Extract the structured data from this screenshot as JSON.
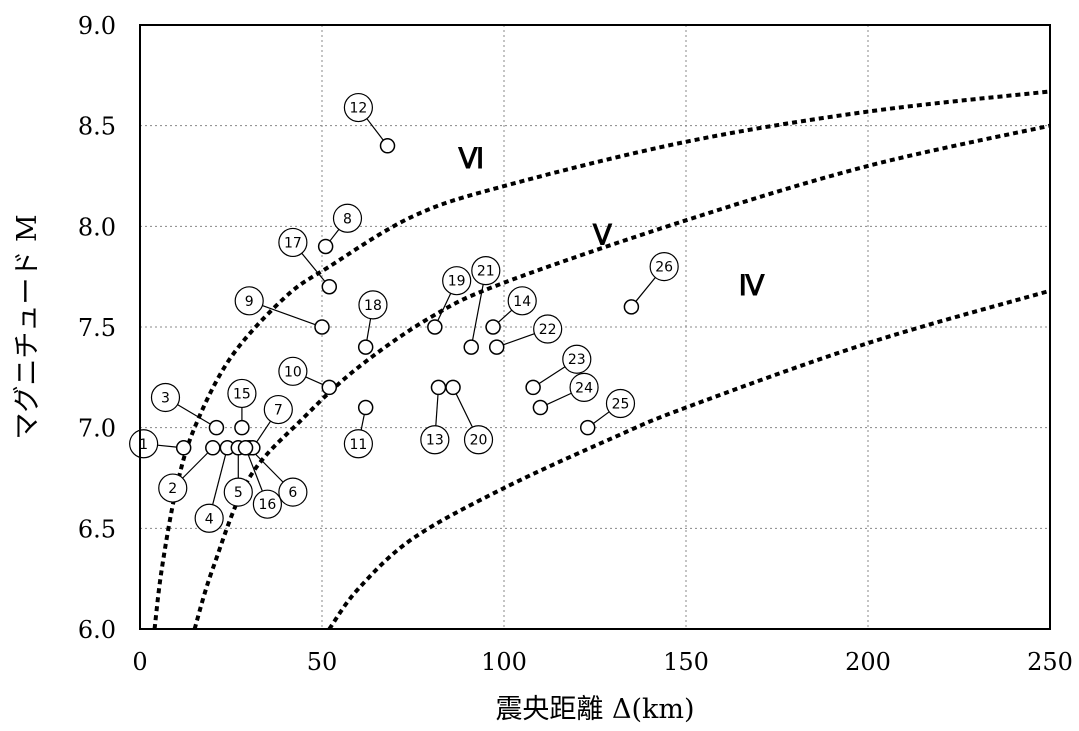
{
  "chart_data": {
    "type": "scatter",
    "xlabel": "震央距離 Δ(km)",
    "ylabel": "マグニチュード M",
    "xlim": [
      0,
      250
    ],
    "ylim": [
      6.0,
      9.0
    ],
    "grid": true,
    "x_ticks": [
      "0",
      "50",
      "100",
      "150",
      "200",
      "250"
    ],
    "y_ticks": [
      "6.0",
      "6.5",
      "7.0",
      "7.5",
      "8.0",
      "8.5",
      "9.0"
    ],
    "curves": [
      {
        "label": "Ⅵ",
        "points": [
          [
            4,
            6.0
          ],
          [
            6,
            6.3
          ],
          [
            10,
            6.7
          ],
          [
            15,
            7.0
          ],
          [
            25,
            7.35
          ],
          [
            40,
            7.65
          ],
          [
            52,
            7.8
          ],
          [
            75,
            8.05
          ],
          [
            100,
            8.2
          ],
          [
            150,
            8.42
          ],
          [
            200,
            8.57
          ],
          [
            250,
            8.67
          ]
        ]
      },
      {
        "label": "Ⅴ",
        "points": [
          [
            15,
            6.0
          ],
          [
            20,
            6.3
          ],
          [
            30,
            6.75
          ],
          [
            45,
            7.05
          ],
          [
            60,
            7.3
          ],
          [
            80,
            7.55
          ],
          [
            100,
            7.72
          ],
          [
            150,
            8.03
          ],
          [
            200,
            8.3
          ],
          [
            250,
            8.5
          ]
        ]
      },
      {
        "label": "Ⅳ",
        "points": [
          [
            52,
            6.0
          ],
          [
            60,
            6.2
          ],
          [
            75,
            6.45
          ],
          [
            100,
            6.7
          ],
          [
            130,
            6.95
          ],
          [
            150,
            7.1
          ],
          [
            200,
            7.42
          ],
          [
            250,
            7.68
          ]
        ]
      }
    ],
    "zone_labels": [
      "Ⅵ",
      "Ⅴ",
      "Ⅳ"
    ],
    "points": [
      {
        "id": "1",
        "x": 12,
        "y": 6.9
      },
      {
        "id": "2",
        "x": 20,
        "y": 6.9
      },
      {
        "id": "3",
        "x": 21,
        "y": 7.0
      },
      {
        "id": "4",
        "x": 24,
        "y": 6.9
      },
      {
        "id": "5",
        "x": 27,
        "y": 6.9
      },
      {
        "id": "6",
        "x": 30,
        "y": 6.9
      },
      {
        "id": "7",
        "x": 31,
        "y": 6.9
      },
      {
        "id": "8",
        "x": 51,
        "y": 7.9
      },
      {
        "id": "9",
        "x": 50,
        "y": 7.5
      },
      {
        "id": "10",
        "x": 52,
        "y": 7.2
      },
      {
        "id": "11",
        "x": 62,
        "y": 7.1
      },
      {
        "id": "12",
        "x": 68,
        "y": 8.4
      },
      {
        "id": "13",
        "x": 82,
        "y": 7.2
      },
      {
        "id": "14",
        "x": 97,
        "y": 7.5
      },
      {
        "id": "15",
        "x": 28,
        "y": 7.0
      },
      {
        "id": "16",
        "x": 29,
        "y": 6.9
      },
      {
        "id": "17",
        "x": 52,
        "y": 7.7
      },
      {
        "id": "18",
        "x": 62,
        "y": 7.4
      },
      {
        "id": "19",
        "x": 81,
        "y": 7.5
      },
      {
        "id": "20",
        "x": 86,
        "y": 7.2
      },
      {
        "id": "21",
        "x": 91,
        "y": 7.4
      },
      {
        "id": "22",
        "x": 98,
        "y": 7.4
      },
      {
        "id": "23",
        "x": 108,
        "y": 7.2
      },
      {
        "id": "24",
        "x": 110,
        "y": 7.1
      },
      {
        "id": "25",
        "x": 123,
        "y": 7.0
      },
      {
        "id": "26",
        "x": 135,
        "y": 7.6
      }
    ],
    "labels": [
      {
        "id": "1",
        "x": 1,
        "y": 6.92
      },
      {
        "id": "2",
        "x": 9,
        "y": 6.7
      },
      {
        "id": "3",
        "x": 7,
        "y": 7.15
      },
      {
        "id": "4",
        "x": 19,
        "y": 6.55
      },
      {
        "id": "5",
        "x": 27,
        "y": 6.68
      },
      {
        "id": "6",
        "x": 42,
        "y": 6.68
      },
      {
        "id": "7",
        "x": 38,
        "y": 7.09
      },
      {
        "id": "8",
        "x": 57,
        "y": 8.04
      },
      {
        "id": "9",
        "x": 30,
        "y": 7.63
      },
      {
        "id": "10",
        "x": 42,
        "y": 7.28
      },
      {
        "id": "11",
        "x": 60,
        "y": 6.92
      },
      {
        "id": "12",
        "x": 60,
        "y": 8.59
      },
      {
        "id": "13",
        "x": 81,
        "y": 6.94
      },
      {
        "id": "14",
        "x": 105,
        "y": 7.63
      },
      {
        "id": "15",
        "x": 28,
        "y": 7.17
      },
      {
        "id": "16",
        "x": 35,
        "y": 6.62
      },
      {
        "id": "17",
        "x": 42,
        "y": 7.92
      },
      {
        "id": "18",
        "x": 64,
        "y": 7.61
      },
      {
        "id": "19",
        "x": 87,
        "y": 7.73
      },
      {
        "id": "20",
        "x": 93,
        "y": 6.94
      },
      {
        "id": "21",
        "x": 95,
        "y": 7.78
      },
      {
        "id": "22",
        "x": 112,
        "y": 7.49
      },
      {
        "id": "23",
        "x": 120,
        "y": 7.34
      },
      {
        "id": "24",
        "x": 122,
        "y": 7.2
      },
      {
        "id": "25",
        "x": 132,
        "y": 7.12
      },
      {
        "id": "26",
        "x": 144,
        "y": 7.8
      }
    ]
  }
}
